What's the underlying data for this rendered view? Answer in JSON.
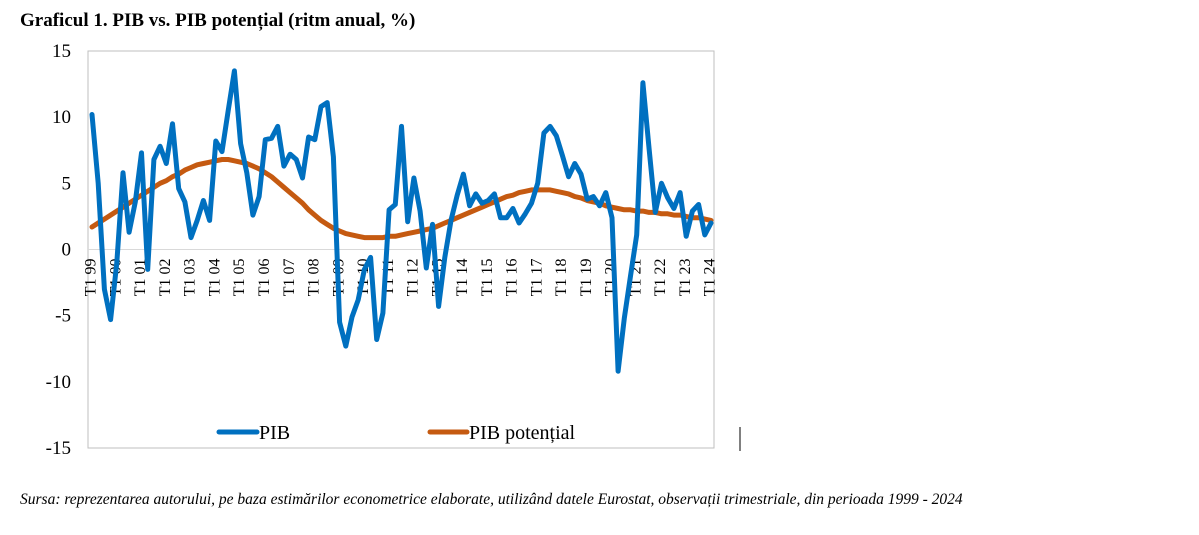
{
  "title": "Graficul 1. PIB vs. PIB potențial (ritm anual, %)",
  "source": "Sursa: reprezentarea autorului, pe baza estimărilor econometrice elaborate, utilizând datele Eurostat, observații trimestriale, din perioada 1999 - 2024",
  "colors": {
    "pib": "#0070C0",
    "pib_potential": "#C55A11",
    "plot_border": "#BFBFBF"
  },
  "chart_data": {
    "type": "line",
    "title": "Graficul 1. PIB vs. PIB potențial (ritm anual, %)",
    "xlabel": "",
    "ylabel": "",
    "ylim": [
      -15,
      15
    ],
    "yticks": [
      15,
      10,
      5,
      0,
      -5,
      -10,
      -15
    ],
    "grid": false,
    "legend_position": "bottom",
    "x_tick_labels": [
      "T1 99",
      "T1 00",
      "T1 01",
      "T1 02",
      "T1 03",
      "T1 04",
      "T1 05",
      "T1 06",
      "T1 07",
      "T1 08",
      "T1 09",
      "T1 10",
      "T1 11",
      "T1 12",
      "T1 13",
      "T1 14",
      "T1 15",
      "T1 16",
      "T1 17",
      "T1 18",
      "T1 19",
      "T1 20",
      "T1 21",
      "T1 22",
      "T1 23",
      "T1 24"
    ],
    "series": [
      {
        "name": "PIB",
        "values": [
          10.2,
          5.0,
          -3.0,
          -5.3,
          -1.0,
          5.8,
          1.3,
          3.6,
          7.3,
          -1.5,
          6.8,
          7.8,
          6.5,
          9.5,
          4.6,
          3.6,
          0.9,
          2.2,
          3.7,
          2.2,
          8.2,
          7.4,
          10.5,
          13.5,
          8.0,
          5.8,
          2.6,
          4.0,
          8.3,
          8.4,
          9.3,
          6.3,
          7.2,
          6.8,
          5.4,
          8.5,
          8.3,
          10.8,
          11.1,
          7.0,
          -5.5,
          -7.3,
          -5.1,
          -3.8,
          -1.5,
          -0.6,
          -6.8,
          -4.8,
          3.0,
          3.4,
          9.3,
          2.1,
          5.4,
          2.9,
          -1.4,
          1.9,
          -4.3,
          -0.6,
          2.2,
          4.1,
          5.7,
          3.3,
          4.2,
          3.5,
          3.7,
          4.2,
          2.4,
          2.4,
          3.1,
          2.0,
          2.7,
          3.5,
          5.0,
          8.8,
          9.3,
          8.6,
          7.1,
          5.5,
          6.5,
          5.7,
          3.8,
          4.0,
          3.3,
          4.3,
          2.4,
          -9.2,
          -5.2,
          -2.0,
          1.1,
          12.6,
          7.6,
          2.8,
          5.0,
          3.9,
          3.1,
          4.3,
          1.0,
          2.9,
          3.4,
          1.1,
          2.0
        ]
      },
      {
        "name": "PIB potențial",
        "values": [
          1.7,
          2.0,
          2.3,
          2.6,
          2.9,
          3.2,
          3.5,
          3.8,
          4.1,
          4.4,
          4.7,
          5.0,
          5.2,
          5.5,
          5.7,
          6.0,
          6.2,
          6.4,
          6.5,
          6.6,
          6.7,
          6.8,
          6.8,
          6.7,
          6.6,
          6.5,
          6.3,
          6.1,
          5.8,
          5.5,
          5.1,
          4.7,
          4.3,
          3.9,
          3.5,
          3.0,
          2.6,
          2.2,
          1.9,
          1.6,
          1.4,
          1.2,
          1.1,
          1.0,
          0.9,
          0.9,
          0.9,
          0.9,
          1.0,
          1.0,
          1.1,
          1.2,
          1.3,
          1.4,
          1.5,
          1.6,
          1.8,
          2.0,
          2.2,
          2.4,
          2.6,
          2.8,
          3.0,
          3.2,
          3.4,
          3.6,
          3.8,
          4.0,
          4.1,
          4.3,
          4.4,
          4.5,
          4.5,
          4.5,
          4.5,
          4.4,
          4.3,
          4.2,
          4.0,
          3.9,
          3.7,
          3.6,
          3.5,
          3.3,
          3.2,
          3.1,
          3.0,
          3.0,
          2.9,
          2.9,
          2.8,
          2.8,
          2.7,
          2.7,
          2.6,
          2.6,
          2.5,
          2.4,
          2.4,
          2.3,
          2.2
        ]
      }
    ]
  }
}
